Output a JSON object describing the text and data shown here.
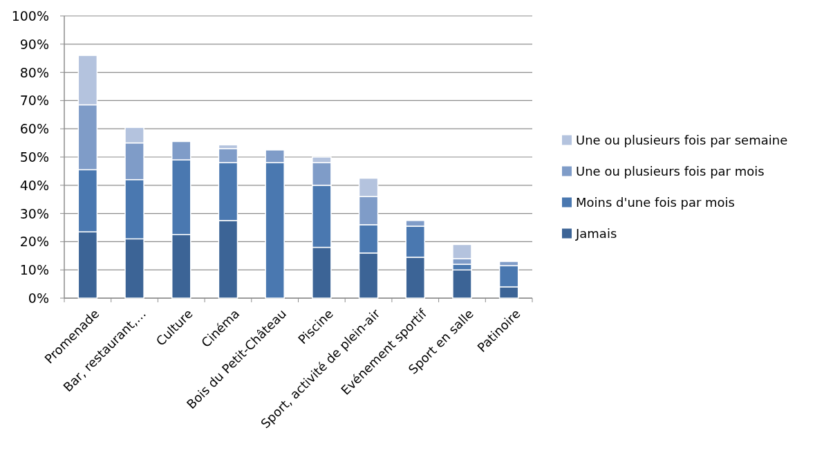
{
  "chart_data": {
    "type": "bar",
    "stacked": true,
    "categories": [
      "Promenade",
      "Bar, restaurant,…",
      "Culture",
      "Cinéma",
      "Bois du Petit-Château",
      "Piscine",
      "Sport, activité de plein-air",
      "Evénement sportif",
      "Sport en salle",
      "Patinoire"
    ],
    "series": [
      {
        "name": "Jamais",
        "color": "#3c6496",
        "values": [
          23.5,
          21,
          22.5,
          27.5,
          0,
          18,
          16,
          14.5,
          10,
          4
        ]
      },
      {
        "name": "Moins d'une fois par mois",
        "color": "#4a78b0",
        "values": [
          22,
          21,
          26.5,
          20.5,
          48,
          22,
          10,
          11,
          2,
          7.5
        ]
      },
      {
        "name": "Une ou plusieurs fois par mois",
        "color": "#7f9cc8",
        "values": [
          23,
          13,
          6.5,
          5,
          4.5,
          8,
          10,
          2,
          2,
          1.5
        ]
      },
      {
        "name": "Une ou plusieurs fois par semaine",
        "color": "#b4c3de",
        "values": [
          17.5,
          5.5,
          0,
          1.3,
          0,
          2,
          6.5,
          0,
          5,
          0
        ]
      }
    ],
    "ylim": [
      0,
      100
    ],
    "yticks": [
      {
        "value": 0,
        "label": "0%"
      },
      {
        "value": 10,
        "label": "10%"
      },
      {
        "value": 20,
        "label": "20%"
      },
      {
        "value": 30,
        "label": "30%"
      },
      {
        "value": 40,
        "label": "40%"
      },
      {
        "value": 50,
        "label": "50%"
      },
      {
        "value": 60,
        "label": "60%"
      },
      {
        "value": 70,
        "label": "70%"
      },
      {
        "value": 80,
        "label": "80%"
      },
      {
        "value": 90,
        "label": "90%"
      },
      {
        "value": 100,
        "label": "100%"
      }
    ],
    "grid": "y",
    "legend": "right"
  }
}
